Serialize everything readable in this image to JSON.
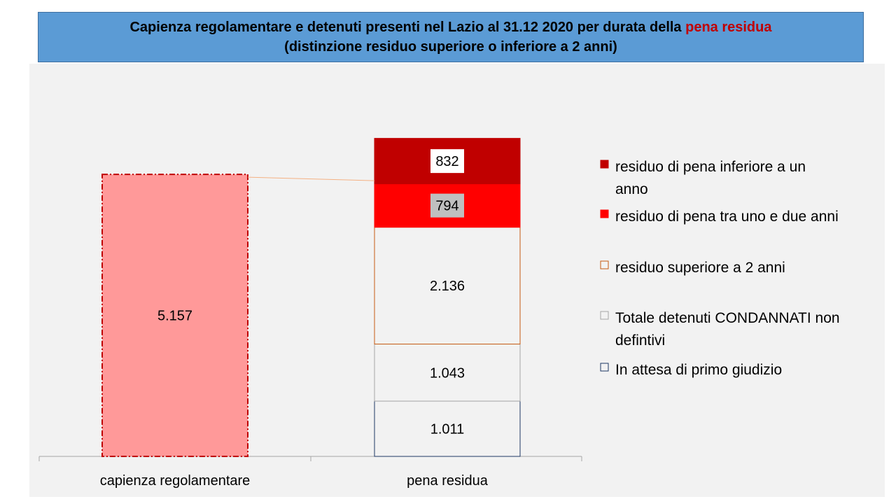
{
  "title": {
    "line1_before": "Capienza regolamentare e detenuti presenti nel Lazio al 31.12 2020 per durata della ",
    "line1_highlight": "pena residua",
    "line2": "(distinzione residuo superiore o inferiore a 2 anni)"
  },
  "colors": {
    "capienza_fill": "#ff9999",
    "capienza_border": "#c00000",
    "inferiore_un_anno": "#c00000",
    "tra_uno_e_due": "#ff0000",
    "superiore_2_anni_border": "#c55a11",
    "condannati_border": "#a6a6a6",
    "attesa_border": "#1f3864"
  },
  "chart_data": {
    "type": "bar",
    "stacked": true,
    "categories": [
      "capienza regolamentare",
      "pena residua"
    ],
    "ylim": [
      0,
      6400
    ],
    "grid": false,
    "legend_position": "right",
    "capienza": {
      "value": 5157,
      "label": "5.157"
    },
    "series": [
      {
        "name": "In attesa di primo giudizio",
        "values": [
          0,
          1011
        ],
        "labels": [
          "",
          "1.011"
        ]
      },
      {
        "name": "Totale detenuti CONDANNATI non defintivi",
        "values": [
          0,
          1043
        ],
        "labels": [
          "",
          "1.043"
        ]
      },
      {
        "name": "residuo superiore a 2 anni",
        "values": [
          0,
          2136
        ],
        "labels": [
          "",
          "2.136"
        ]
      },
      {
        "name": "residuo di pena tra uno e due anni",
        "values": [
          0,
          794
        ],
        "labels": [
          "",
          "794"
        ]
      },
      {
        "name": "residuo di pena inferiore a un anno",
        "values": [
          0,
          832
        ],
        "labels": [
          "",
          "832"
        ]
      }
    ],
    "legend": [
      {
        "lines": [
          "residuo di pena inferiore a un",
          "anno"
        ],
        "style": "inferiore"
      },
      {
        "lines": [
          "residuo di pena tra uno e due anni"
        ],
        "style": "tra"
      },
      {
        "lines": [
          "residuo superiore a 2 anni"
        ],
        "style": "superiore"
      },
      {
        "lines": [
          "Totale detenuti CONDANNATI non",
          "defintivi"
        ],
        "style": "condannati"
      },
      {
        "lines": [
          "In attesa di primo giudizio"
        ],
        "style": "attesa"
      }
    ]
  }
}
